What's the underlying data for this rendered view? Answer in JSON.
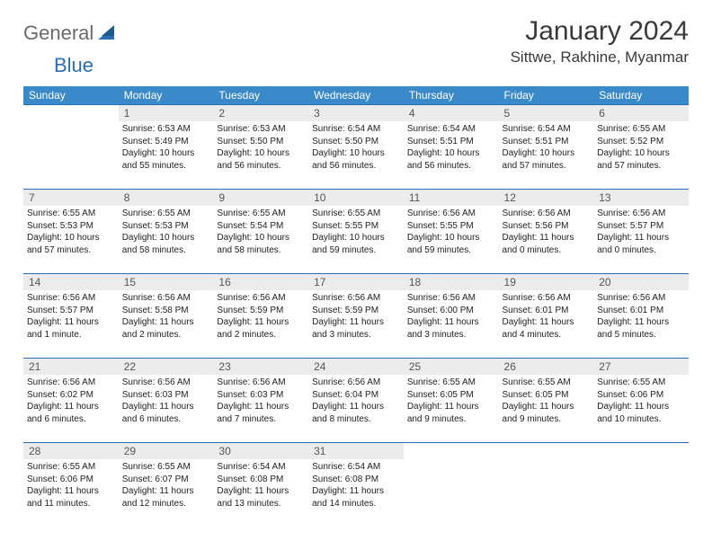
{
  "logo": {
    "general": "General",
    "blue": "Blue"
  },
  "title": "January 2024",
  "location": "Sittwe, Rakhine, Myanmar",
  "colors": {
    "header_bg": "#3a8ac9",
    "header_text": "#ffffff",
    "border": "#2a6fb5",
    "daynum_bg": "#ececec",
    "logo_blue": "#2a6fb5",
    "logo_gray": "#6b6b6b"
  },
  "weekdays": [
    "Sunday",
    "Monday",
    "Tuesday",
    "Wednesday",
    "Thursday",
    "Friday",
    "Saturday"
  ],
  "weeks": [
    [
      {
        "n": "",
        "sr": "",
        "ss": "",
        "dl": ""
      },
      {
        "n": "1",
        "sr": "Sunrise: 6:53 AM",
        "ss": "Sunset: 5:49 PM",
        "dl": "Daylight: 10 hours and 55 minutes."
      },
      {
        "n": "2",
        "sr": "Sunrise: 6:53 AM",
        "ss": "Sunset: 5:50 PM",
        "dl": "Daylight: 10 hours and 56 minutes."
      },
      {
        "n": "3",
        "sr": "Sunrise: 6:54 AM",
        "ss": "Sunset: 5:50 PM",
        "dl": "Daylight: 10 hours and 56 minutes."
      },
      {
        "n": "4",
        "sr": "Sunrise: 6:54 AM",
        "ss": "Sunset: 5:51 PM",
        "dl": "Daylight: 10 hours and 56 minutes."
      },
      {
        "n": "5",
        "sr": "Sunrise: 6:54 AM",
        "ss": "Sunset: 5:51 PM",
        "dl": "Daylight: 10 hours and 57 minutes."
      },
      {
        "n": "6",
        "sr": "Sunrise: 6:55 AM",
        "ss": "Sunset: 5:52 PM",
        "dl": "Daylight: 10 hours and 57 minutes."
      }
    ],
    [
      {
        "n": "7",
        "sr": "Sunrise: 6:55 AM",
        "ss": "Sunset: 5:53 PM",
        "dl": "Daylight: 10 hours and 57 minutes."
      },
      {
        "n": "8",
        "sr": "Sunrise: 6:55 AM",
        "ss": "Sunset: 5:53 PM",
        "dl": "Daylight: 10 hours and 58 minutes."
      },
      {
        "n": "9",
        "sr": "Sunrise: 6:55 AM",
        "ss": "Sunset: 5:54 PM",
        "dl": "Daylight: 10 hours and 58 minutes."
      },
      {
        "n": "10",
        "sr": "Sunrise: 6:55 AM",
        "ss": "Sunset: 5:55 PM",
        "dl": "Daylight: 10 hours and 59 minutes."
      },
      {
        "n": "11",
        "sr": "Sunrise: 6:56 AM",
        "ss": "Sunset: 5:55 PM",
        "dl": "Daylight: 10 hours and 59 minutes."
      },
      {
        "n": "12",
        "sr": "Sunrise: 6:56 AM",
        "ss": "Sunset: 5:56 PM",
        "dl": "Daylight: 11 hours and 0 minutes."
      },
      {
        "n": "13",
        "sr": "Sunrise: 6:56 AM",
        "ss": "Sunset: 5:57 PM",
        "dl": "Daylight: 11 hours and 0 minutes."
      }
    ],
    [
      {
        "n": "14",
        "sr": "Sunrise: 6:56 AM",
        "ss": "Sunset: 5:57 PM",
        "dl": "Daylight: 11 hours and 1 minute."
      },
      {
        "n": "15",
        "sr": "Sunrise: 6:56 AM",
        "ss": "Sunset: 5:58 PM",
        "dl": "Daylight: 11 hours and 2 minutes."
      },
      {
        "n": "16",
        "sr": "Sunrise: 6:56 AM",
        "ss": "Sunset: 5:59 PM",
        "dl": "Daylight: 11 hours and 2 minutes."
      },
      {
        "n": "17",
        "sr": "Sunrise: 6:56 AM",
        "ss": "Sunset: 5:59 PM",
        "dl": "Daylight: 11 hours and 3 minutes."
      },
      {
        "n": "18",
        "sr": "Sunrise: 6:56 AM",
        "ss": "Sunset: 6:00 PM",
        "dl": "Daylight: 11 hours and 3 minutes."
      },
      {
        "n": "19",
        "sr": "Sunrise: 6:56 AM",
        "ss": "Sunset: 6:01 PM",
        "dl": "Daylight: 11 hours and 4 minutes."
      },
      {
        "n": "20",
        "sr": "Sunrise: 6:56 AM",
        "ss": "Sunset: 6:01 PM",
        "dl": "Daylight: 11 hours and 5 minutes."
      }
    ],
    [
      {
        "n": "21",
        "sr": "Sunrise: 6:56 AM",
        "ss": "Sunset: 6:02 PM",
        "dl": "Daylight: 11 hours and 6 minutes."
      },
      {
        "n": "22",
        "sr": "Sunrise: 6:56 AM",
        "ss": "Sunset: 6:03 PM",
        "dl": "Daylight: 11 hours and 6 minutes."
      },
      {
        "n": "23",
        "sr": "Sunrise: 6:56 AM",
        "ss": "Sunset: 6:03 PM",
        "dl": "Daylight: 11 hours and 7 minutes."
      },
      {
        "n": "24",
        "sr": "Sunrise: 6:56 AM",
        "ss": "Sunset: 6:04 PM",
        "dl": "Daylight: 11 hours and 8 minutes."
      },
      {
        "n": "25",
        "sr": "Sunrise: 6:55 AM",
        "ss": "Sunset: 6:05 PM",
        "dl": "Daylight: 11 hours and 9 minutes."
      },
      {
        "n": "26",
        "sr": "Sunrise: 6:55 AM",
        "ss": "Sunset: 6:05 PM",
        "dl": "Daylight: 11 hours and 9 minutes."
      },
      {
        "n": "27",
        "sr": "Sunrise: 6:55 AM",
        "ss": "Sunset: 6:06 PM",
        "dl": "Daylight: 11 hours and 10 minutes."
      }
    ],
    [
      {
        "n": "28",
        "sr": "Sunrise: 6:55 AM",
        "ss": "Sunset: 6:06 PM",
        "dl": "Daylight: 11 hours and 11 minutes."
      },
      {
        "n": "29",
        "sr": "Sunrise: 6:55 AM",
        "ss": "Sunset: 6:07 PM",
        "dl": "Daylight: 11 hours and 12 minutes."
      },
      {
        "n": "30",
        "sr": "Sunrise: 6:54 AM",
        "ss": "Sunset: 6:08 PM",
        "dl": "Daylight: 11 hours and 13 minutes."
      },
      {
        "n": "31",
        "sr": "Sunrise: 6:54 AM",
        "ss": "Sunset: 6:08 PM",
        "dl": "Daylight: 11 hours and 14 minutes."
      },
      {
        "n": "",
        "sr": "",
        "ss": "",
        "dl": ""
      },
      {
        "n": "",
        "sr": "",
        "ss": "",
        "dl": ""
      },
      {
        "n": "",
        "sr": "",
        "ss": "",
        "dl": ""
      }
    ]
  ]
}
